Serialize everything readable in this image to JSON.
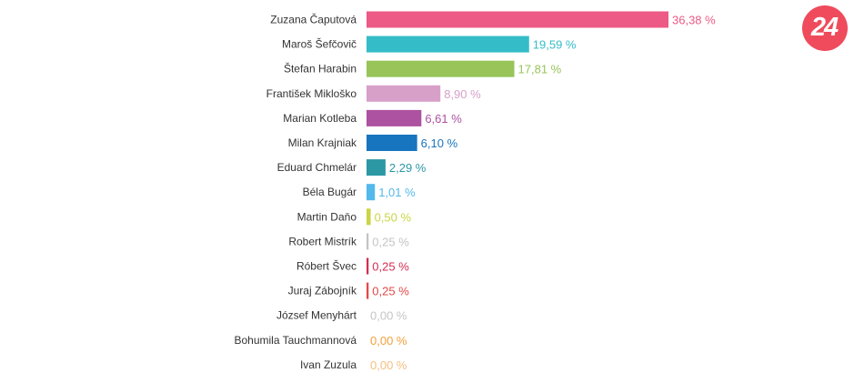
{
  "chart_data": {
    "type": "bar",
    "orientation": "horizontal",
    "categories": [
      "Zuzana Čaputová",
      "Maroš Šefčovič",
      "Štefan Harabin",
      "František Mikloško",
      "Marian Kotleba",
      "Milan Krajniak",
      "Eduard Chmelár",
      "Béla Bugár",
      "Martin Daňo",
      "Robert Mistrík",
      "Róbert Švec",
      "Juraj Zábojník",
      "József Menyhárt",
      "Bohumila Tauchmannová",
      "Ivan Zuzula"
    ],
    "values": [
      36.38,
      19.59,
      17.81,
      8.9,
      6.61,
      6.1,
      2.29,
      1.01,
      0.5,
      0.25,
      0.25,
      0.25,
      0.0,
      0.0,
      0.0
    ],
    "value_labels": [
      "36,38 %",
      "19,59 %",
      "17,81 %",
      "8,90 %",
      "6,61 %",
      "6,10 %",
      "2,29 %",
      "1,01 %",
      "0,50 %",
      "0,25 %",
      "0,25 %",
      "0,25 %",
      "0,00 %",
      "0,00 %",
      "0,00 %"
    ],
    "colors": [
      "#ec5a85",
      "#34bdc8",
      "#98c45a",
      "#d7a0c8",
      "#ac52a0",
      "#1775bf",
      "#2b98a4",
      "#53b8ea",
      "#c9d545",
      "#c4c4c4",
      "#d22e52",
      "#e24848",
      "#c4c4c4",
      "#f2a03a",
      "#f6bf7f"
    ],
    "xlim": [
      0,
      36.38
    ],
    "grid": false,
    "legend": "none",
    "title": "",
    "xlabel": "",
    "ylabel": ""
  },
  "logo": {
    "text": "24",
    "color": "#ef4b5c"
  }
}
